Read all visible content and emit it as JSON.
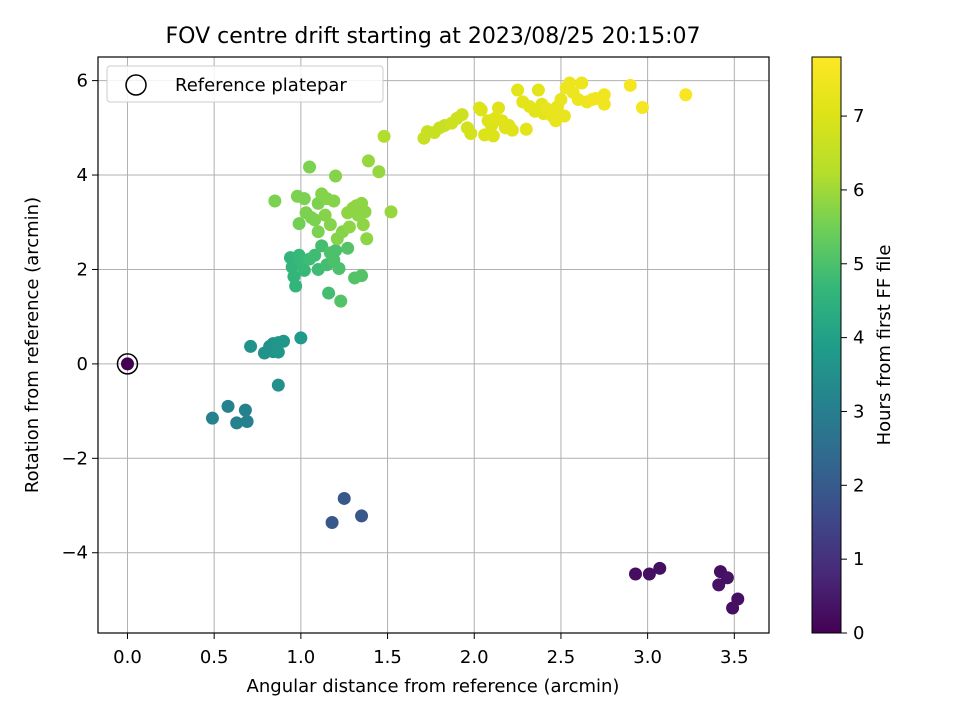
{
  "chart_data": {
    "type": "scatter",
    "title": "FOV centre drift starting at 2023/08/25 20:15:07",
    "xlabel": "Angular distance from reference (arcmin)",
    "ylabel": "Rotation from reference (arcmin)",
    "xlim": [
      -0.17,
      3.7
    ],
    "ylim": [
      -5.7,
      6.5
    ],
    "xticks": [
      "0.0",
      "0.5",
      "1.0",
      "1.5",
      "2.0",
      "2.5",
      "3.0",
      "3.5"
    ],
    "xtick_values": [
      0,
      0.5,
      1.0,
      1.5,
      2.0,
      2.5,
      3.0,
      3.5
    ],
    "yticks": [
      "−4",
      "−2",
      "0",
      "2",
      "4",
      "6"
    ],
    "ytick_values": [
      -4,
      -2,
      0,
      2,
      4,
      6
    ],
    "grid": true,
    "legend": {
      "position": "top-left",
      "entries": [
        "Reference platepar"
      ]
    },
    "colorbar": {
      "label": "Hours from first FF file",
      "range": [
        0,
        7.8
      ],
      "ticks": [
        "0",
        "1",
        "2",
        "3",
        "4",
        "5",
        "6",
        "7"
      ],
      "tick_values": [
        0,
        1,
        2,
        3,
        4,
        5,
        6,
        7
      ],
      "colormap": "viridis"
    },
    "reference_point": {
      "x": 0,
      "y": 0,
      "c": 0
    },
    "points": [
      [
        2.93,
        -4.45,
        0.25
      ],
      [
        3.01,
        -4.45,
        0.3
      ],
      [
        3.07,
        -4.33,
        0.3
      ],
      [
        3.41,
        -4.68,
        0.35
      ],
      [
        3.42,
        -4.4,
        0.3
      ],
      [
        3.46,
        -4.53,
        0.35
      ],
      [
        3.49,
        -5.17,
        0.3
      ],
      [
        3.52,
        -4.98,
        0.3
      ],
      [
        1.18,
        -3.36,
        1.9
      ],
      [
        1.25,
        -2.85,
        1.9
      ],
      [
        1.35,
        -3.22,
        1.9
      ],
      [
        0.49,
        -1.15,
        3.1
      ],
      [
        0.58,
        -0.9,
        3.1
      ],
      [
        0.63,
        -1.25,
        3.1
      ],
      [
        0.68,
        -0.98,
        3.1
      ],
      [
        0.69,
        -1.22,
        3.1
      ],
      [
        0.71,
        0.37,
        3.6
      ],
      [
        0.79,
        0.23,
        3.6
      ],
      [
        0.82,
        0.37,
        3.6
      ],
      [
        0.84,
        0.43,
        3.6
      ],
      [
        0.84,
        0.26,
        3.6
      ],
      [
        0.87,
        0.45,
        3.7
      ],
      [
        0.87,
        0.25,
        3.7
      ],
      [
        0.9,
        0.48,
        3.7
      ],
      [
        1.0,
        0.55,
        3.8
      ],
      [
        0.87,
        -0.45,
        3.5
      ],
      [
        0.94,
        2.25,
        4.6
      ],
      [
        0.95,
        2.05,
        4.6
      ],
      [
        0.96,
        1.85,
        4.6
      ],
      [
        0.97,
        1.65,
        4.6
      ],
      [
        0.99,
        2.3,
        4.7
      ],
      [
        1.0,
        2.15,
        4.7
      ],
      [
        1.02,
        1.98,
        4.7
      ],
      [
        1.05,
        2.22,
        4.8
      ],
      [
        1.08,
        2.3,
        4.8
      ],
      [
        1.1,
        2.0,
        4.8
      ],
      [
        1.12,
        2.5,
        4.9
      ],
      [
        1.15,
        2.1,
        4.9
      ],
      [
        1.16,
        1.5,
        4.9
      ],
      [
        1.17,
        2.35,
        5.0
      ],
      [
        1.19,
        2.2,
        5.0
      ],
      [
        1.2,
        2.4,
        5.0
      ],
      [
        1.22,
        2.02,
        5.0
      ],
      [
        1.23,
        1.33,
        5.1
      ],
      [
        1.27,
        2.45,
        5.1
      ],
      [
        1.31,
        1.82,
        5.1
      ],
      [
        1.35,
        1.87,
        5.1
      ],
      [
        0.85,
        3.45,
        5.6
      ],
      [
        0.98,
        3.55,
        5.6
      ],
      [
        0.99,
        2.97,
        5.5
      ],
      [
        1.02,
        3.5,
        5.6
      ],
      [
        1.03,
        3.2,
        5.6
      ],
      [
        1.05,
        4.17,
        5.6
      ],
      [
        1.06,
        3.1,
        5.6
      ],
      [
        1.08,
        3.05,
        5.6
      ],
      [
        1.1,
        2.8,
        5.6
      ],
      [
        1.1,
        3.4,
        5.6
      ],
      [
        1.12,
        3.6,
        5.7
      ],
      [
        1.14,
        3.15,
        5.7
      ],
      [
        1.15,
        3.5,
        5.7
      ],
      [
        1.17,
        2.95,
        5.7
      ],
      [
        1.19,
        3.45,
        5.7
      ],
      [
        1.2,
        3.98,
        5.7
      ],
      [
        1.21,
        2.65,
        5.7
      ],
      [
        1.24,
        2.8,
        5.7
      ],
      [
        1.27,
        3.2,
        5.8
      ],
      [
        1.28,
        2.9,
        5.8
      ],
      [
        1.3,
        3.3,
        5.8
      ],
      [
        1.32,
        3.35,
        5.8
      ],
      [
        1.33,
        3.15,
        5.8
      ],
      [
        1.35,
        3.4,
        5.8
      ],
      [
        1.36,
        2.95,
        5.8
      ],
      [
        1.37,
        3.22,
        5.8
      ],
      [
        1.38,
        2.65,
        5.8
      ],
      [
        1.39,
        4.3,
        5.9
      ],
      [
        1.45,
        4.07,
        5.9
      ],
      [
        1.52,
        3.22,
        5.9
      ],
      [
        1.48,
        4.82,
        6.2
      ],
      [
        1.71,
        4.78,
        6.6
      ],
      [
        1.73,
        4.92,
        6.6
      ],
      [
        1.77,
        4.9,
        6.6
      ],
      [
        1.8,
        5.0,
        6.6
      ],
      [
        1.83,
        5.05,
        6.6
      ],
      [
        1.87,
        5.1,
        6.7
      ],
      [
        1.9,
        5.2,
        6.7
      ],
      [
        1.93,
        5.28,
        6.7
      ],
      [
        1.96,
        5.0,
        6.8
      ],
      [
        1.98,
        4.88,
        6.8
      ],
      [
        2.03,
        5.42,
        7.0
      ],
      [
        2.04,
        5.38,
        7.0
      ],
      [
        2.06,
        4.85,
        7.0
      ],
      [
        2.08,
        5.15,
        7.0
      ],
      [
        2.1,
        5.05,
        7.0
      ],
      [
        2.11,
        4.83,
        7.0
      ],
      [
        2.12,
        5.2,
        7.1
      ],
      [
        2.14,
        5.42,
        7.1
      ],
      [
        2.16,
        5.15,
        7.1
      ],
      [
        2.18,
        5.0,
        7.1
      ],
      [
        2.2,
        5.05,
        7.1
      ],
      [
        2.22,
        4.95,
        7.1
      ],
      [
        2.25,
        5.8,
        7.2
      ],
      [
        2.28,
        5.55,
        7.2
      ],
      [
        2.3,
        4.97,
        7.2
      ],
      [
        2.32,
        5.45,
        7.2
      ],
      [
        2.35,
        5.35,
        7.2
      ],
      [
        2.37,
        5.8,
        7.2
      ],
      [
        2.39,
        5.5,
        7.2
      ],
      [
        2.4,
        5.3,
        7.2
      ],
      [
        2.42,
        5.4,
        7.3
      ],
      [
        2.45,
        5.25,
        7.3
      ],
      [
        2.47,
        5.15,
        7.3
      ],
      [
        2.48,
        5.45,
        7.3
      ],
      [
        2.5,
        5.6,
        7.3
      ],
      [
        2.52,
        5.25,
        7.3
      ],
      [
        2.53,
        5.85,
        7.4
      ],
      [
        2.55,
        5.95,
        7.4
      ],
      [
        2.57,
        5.75,
        7.4
      ],
      [
        2.6,
        5.6,
        7.4
      ],
      [
        2.62,
        5.95,
        7.4
      ],
      [
        2.65,
        5.55,
        7.4
      ],
      [
        2.68,
        5.6,
        7.5
      ],
      [
        2.7,
        5.62,
        7.5
      ],
      [
        2.75,
        5.7,
        7.5
      ],
      [
        2.75,
        5.5,
        7.5
      ],
      [
        2.9,
        5.9,
        7.6
      ],
      [
        2.97,
        5.43,
        7.6
      ],
      [
        3.22,
        5.7,
        7.7
      ]
    ]
  }
}
